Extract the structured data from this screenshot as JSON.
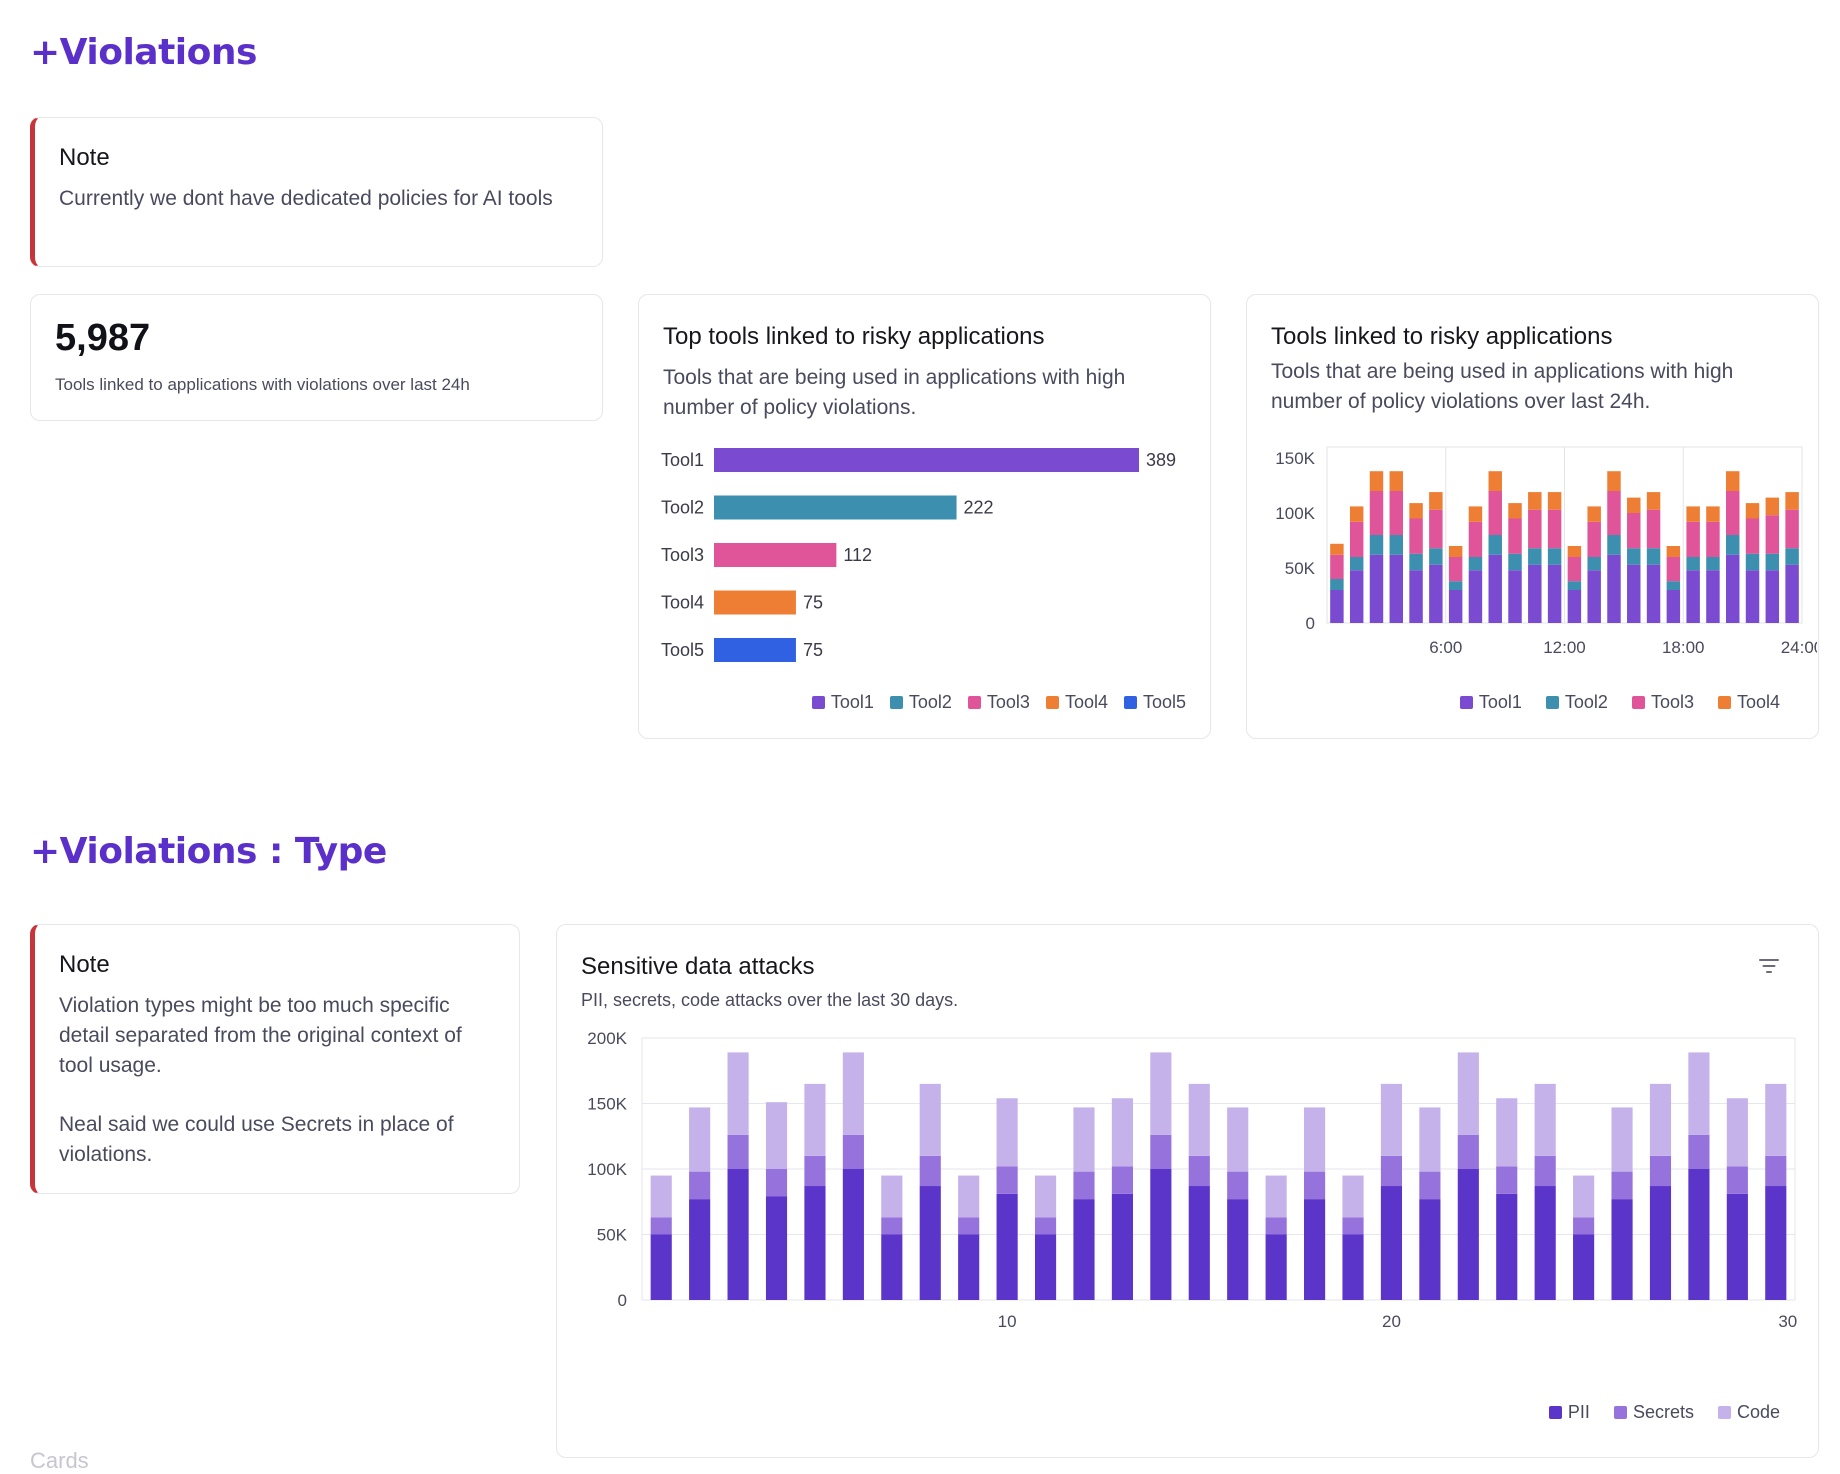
{
  "sections": {
    "violations_title": "+Violations",
    "violations_type_title": "+Violations : Type"
  },
  "note1": {
    "title": "Note",
    "body": "Currently we dont have dedicated policies for AI tools"
  },
  "kpi": {
    "value": "5,987",
    "label": "Tools linked to applications with violations over last 24h"
  },
  "top_tools_card": {
    "title": "Top tools linked to risky applications",
    "subtitle": "Tools that are being used in applications with high number of policy violations."
  },
  "risky_tools_card": {
    "title": "Tools linked to risky applications",
    "subtitle": "Tools that are being used in applications with high number of policy violations over last 24h."
  },
  "note2": {
    "title": "Note",
    "body1": "Violation types might be too much specific detail separated from the original context of tool usage.",
    "body2": "Neal said we could use Secrets in place of violations."
  },
  "sensitive_card": {
    "title": "Sensitive data attacks",
    "subtitle": "PII, secrets, code attacks over the last 30 days."
  },
  "footer": {
    "label": "Cards"
  },
  "colors": {
    "accent": "#5b2fc9",
    "tool1": "#7a4bd1",
    "tool2": "#3d8fb0",
    "tool3": "#e0549a",
    "tool4": "#ee7e33",
    "tool5": "#3061e3",
    "pii": "#5b34c9",
    "secrets": "#9673dc",
    "code": "#c6b2ea"
  },
  "chart_data": [
    {
      "type": "bar",
      "orientation": "horizontal",
      "title": "Top tools linked to risky applications",
      "categories": [
        "Tool1",
        "Tool2",
        "Tool3",
        "Tool4",
        "Tool5"
      ],
      "values": [
        389,
        222,
        112,
        75,
        75
      ],
      "value_labels": [
        "389",
        "222",
        "112",
        "75",
        "75"
      ],
      "legend": [
        "Tool1",
        "Tool2",
        "Tool3",
        "Tool4",
        "Tool5"
      ]
    },
    {
      "type": "bar",
      "stacked": true,
      "title": "Tools linked to risky applications",
      "x": [
        1,
        2,
        3,
        4,
        5,
        6,
        7,
        8,
        9,
        10,
        11,
        12,
        13,
        14,
        15,
        16,
        17,
        18,
        19,
        20,
        21,
        22,
        23,
        24
      ],
      "x_ticks": [
        "6:00",
        "12:00",
        "18:00",
        "24:00"
      ],
      "y_ticks": [
        "150K",
        "100K",
        "50K",
        "0"
      ],
      "ylim": [
        0,
        160000
      ],
      "series": [
        {
          "name": "Tool1",
          "values": [
            30000,
            48000,
            62000,
            62000,
            48000,
            53000,
            30000,
            48000,
            62000,
            48000,
            53000,
            53000,
            30000,
            48000,
            62000,
            53000,
            53000,
            30000,
            48000,
            48000,
            62000,
            48000,
            48000,
            53000
          ]
        },
        {
          "name": "Tool2",
          "values": [
            10000,
            12000,
            18000,
            18000,
            15000,
            15000,
            8000,
            12000,
            18000,
            15000,
            15000,
            15000,
            8000,
            12000,
            18000,
            15000,
            15000,
            8000,
            12000,
            12000,
            18000,
            15000,
            15000,
            15000
          ]
        },
        {
          "name": "Tool3",
          "values": [
            22000,
            32000,
            40000,
            40000,
            32000,
            35000,
            22000,
            32000,
            40000,
            32000,
            35000,
            35000,
            22000,
            32000,
            40000,
            32000,
            35000,
            22000,
            32000,
            32000,
            40000,
            32000,
            35000,
            35000
          ]
        },
        {
          "name": "Tool4",
          "values": [
            10000,
            14000,
            18000,
            18000,
            14000,
            16000,
            10000,
            14000,
            18000,
            14000,
            16000,
            16000,
            10000,
            14000,
            18000,
            14000,
            16000,
            10000,
            14000,
            14000,
            18000,
            14000,
            16000,
            16000
          ]
        }
      ],
      "legend": [
        "Tool1",
        "Tool2",
        "Tool3",
        "Tool4"
      ]
    },
    {
      "type": "bar",
      "stacked": true,
      "title": "Sensitive data attacks",
      "x": [
        1,
        2,
        3,
        4,
        5,
        6,
        7,
        8,
        9,
        10,
        11,
        12,
        13,
        14,
        15,
        16,
        17,
        18,
        19,
        20,
        21,
        22,
        23,
        24,
        25,
        26,
        27,
        28,
        29,
        30
      ],
      "x_ticks": [
        "10",
        "20",
        "30"
      ],
      "x_tick_positions": [
        10,
        20,
        30
      ],
      "y_ticks": [
        "200K",
        "150K",
        "100K",
        "50K",
        "0"
      ],
      "ylim": [
        0,
        200000
      ],
      "series": [
        {
          "name": "PII",
          "values": [
            50000,
            77000,
            100000,
            79000,
            87000,
            100000,
            50000,
            87000,
            50000,
            81000,
            50000,
            77000,
            81000,
            100000,
            87000,
            77000,
            50000,
            77000,
            50000,
            87000,
            77000,
            100000,
            81000,
            87000,
            50000,
            77000,
            87000,
            100000,
            81000,
            87000
          ]
        },
        {
          "name": "Secrets",
          "values": [
            13000,
            21000,
            26000,
            21000,
            23000,
            26000,
            13000,
            23000,
            13000,
            21000,
            13000,
            21000,
            21000,
            26000,
            23000,
            21000,
            13000,
            21000,
            13000,
            23000,
            21000,
            26000,
            21000,
            23000,
            13000,
            21000,
            23000,
            26000,
            21000,
            23000
          ]
        },
        {
          "name": "Code",
          "values": [
            32000,
            49000,
            63000,
            51000,
            55000,
            63000,
            32000,
            55000,
            32000,
            52000,
            32000,
            49000,
            52000,
            63000,
            55000,
            49000,
            32000,
            49000,
            32000,
            55000,
            49000,
            63000,
            52000,
            55000,
            32000,
            49000,
            55000,
            63000,
            52000,
            55000
          ]
        }
      ],
      "legend": [
        "PII",
        "Secrets",
        "Code"
      ]
    }
  ]
}
